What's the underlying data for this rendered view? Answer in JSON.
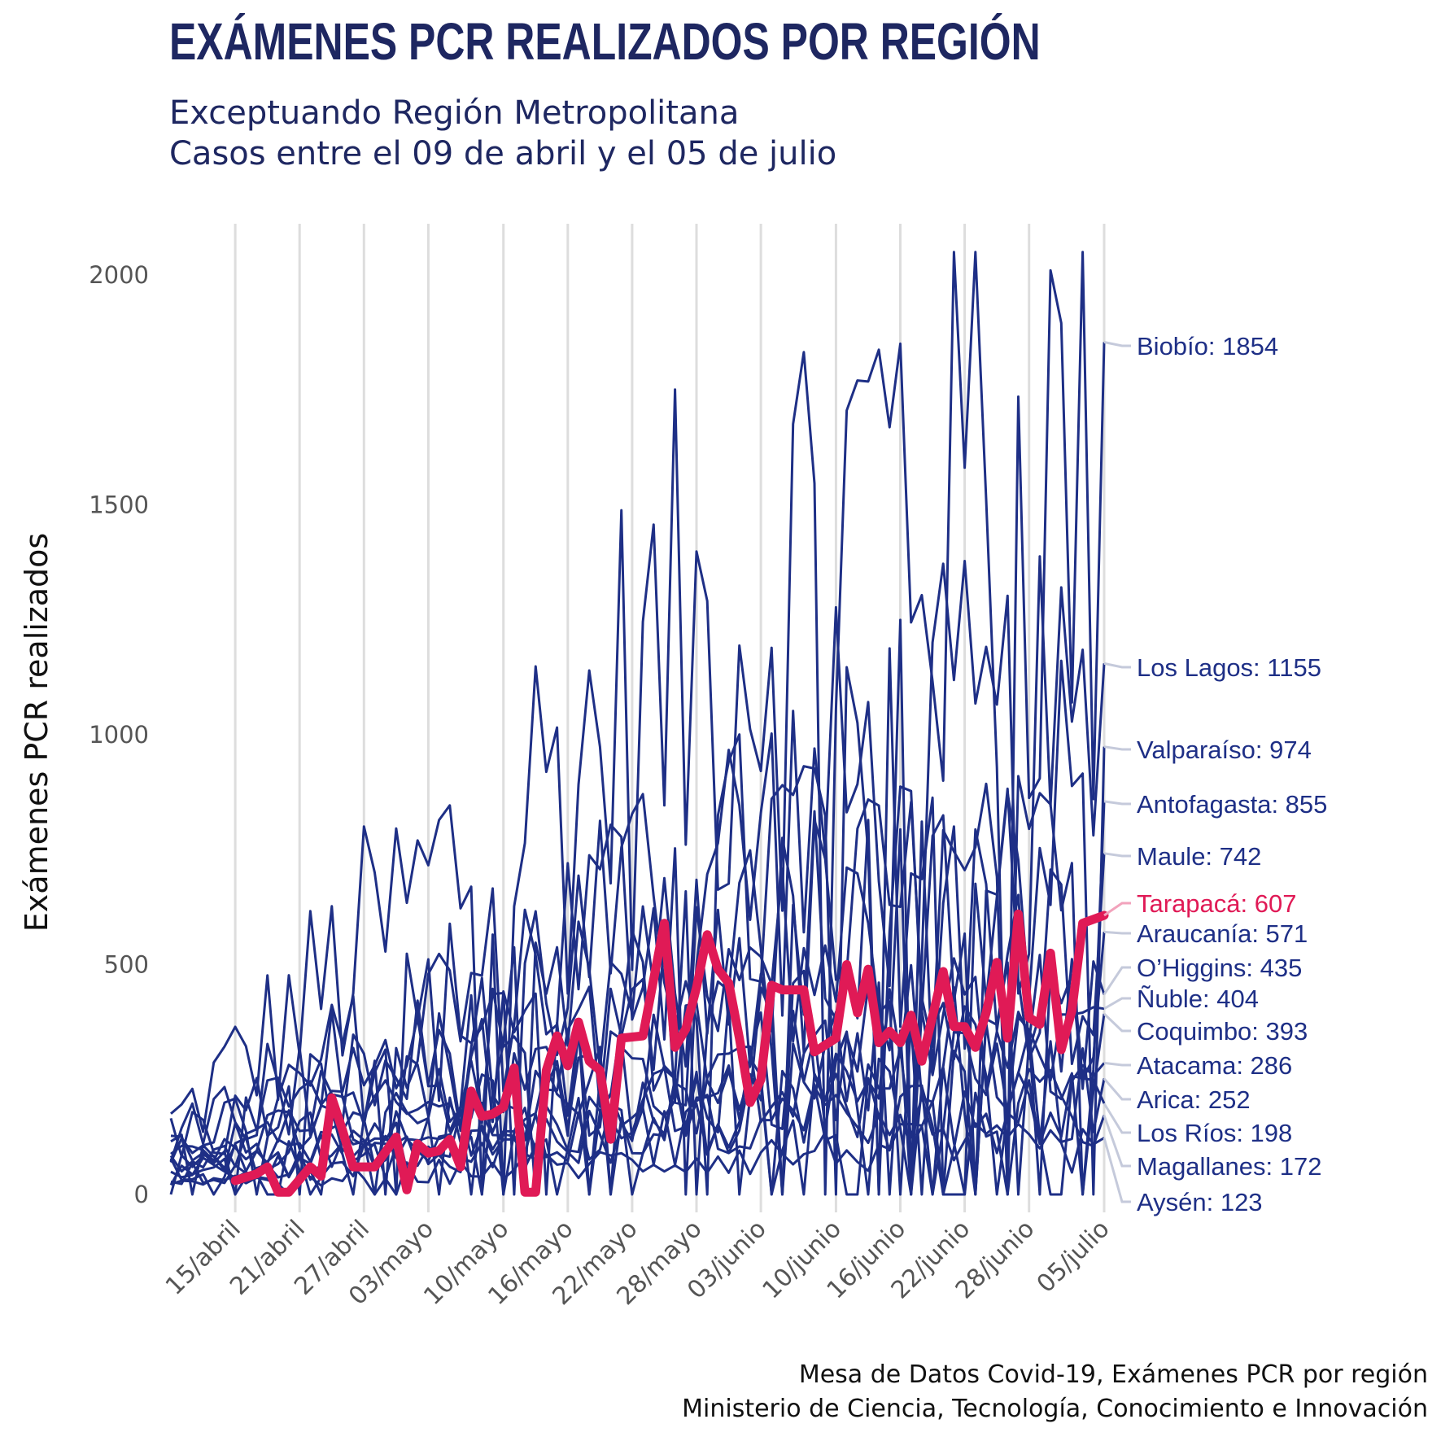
{
  "title": "EXÁMENES PCR REALIZADOS POR REGIÓN",
  "subtitle_line1": "Exceptuando Región Metropolitana",
  "subtitle_line2": "Casos entre el 09 de abril y el 05 de julio",
  "caption_line1": "Mesa de Datos Covid-19, Exámenes PCR por región",
  "caption_line2": "Ministerio de Ciencia, Tecnología, Conocimiento e Innovación",
  "colors": {
    "series": "#1e2f86",
    "highlight": "#e01a56",
    "grid": "#dddddd",
    "label_line": "#c5cadb"
  },
  "chart_data": {
    "type": "line",
    "ylabel": "Exámenes PCR realizados",
    "xlabel": "",
    "ylim": [
      0,
      2100
    ],
    "yticks": [
      0,
      500,
      1000,
      1500,
      2000
    ],
    "xticks": [
      {
        "date": "2020-04-15",
        "label": "15/abril"
      },
      {
        "date": "2020-04-21",
        "label": "21/abril"
      },
      {
        "date": "2020-04-27",
        "label": "27/abril"
      },
      {
        "date": "2020-05-03",
        "label": "03/mayo"
      },
      {
        "date": "2020-05-10",
        "label": "10/mayo"
      },
      {
        "date": "2020-05-16",
        "label": "16/mayo"
      },
      {
        "date": "2020-05-22",
        "label": "22/mayo"
      },
      {
        "date": "2020-05-28",
        "label": "28/mayo"
      },
      {
        "date": "2020-06-03",
        "label": "03/junio"
      },
      {
        "date": "2020-06-10",
        "label": "10/junio"
      },
      {
        "date": "2020-06-16",
        "label": "16/junio"
      },
      {
        "date": "2020-06-22",
        "label": "22/junio"
      },
      {
        "date": "2020-06-28",
        "label": "28/junio"
      },
      {
        "date": "2020-07-05",
        "label": "05/julio"
      }
    ],
    "date_range": [
      "2020-04-09",
      "2020-07-05"
    ],
    "highlight_series": "Tarapacá",
    "series": [
      {
        "name": "Biobío",
        "final": 1854,
        "label": "Biobío: 1854"
      },
      {
        "name": "Los Lagos",
        "final": 1155,
        "label": "Los Lagos: 1155"
      },
      {
        "name": "Valparaíso",
        "final": 974,
        "label": "Valparaíso: 974"
      },
      {
        "name": "Antofagasta",
        "final": 855,
        "label": "Antofagasta: 855"
      },
      {
        "name": "Maule",
        "final": 742,
        "label": "Maule: 742"
      },
      {
        "name": "Tarapacá",
        "final": 607,
        "label": "Tarapacá: 607"
      },
      {
        "name": "Araucanía",
        "final": 571,
        "label": "Araucanía: 571"
      },
      {
        "name": "O’Higgins",
        "final": 435,
        "label": "O’Higgins: 435"
      },
      {
        "name": "Ñuble",
        "final": 404,
        "label": "Ñuble: 404"
      },
      {
        "name": "Coquimbo",
        "final": 393,
        "label": "Coquimbo: 393"
      },
      {
        "name": "Atacama",
        "final": 286,
        "label": "Atacama: 286"
      },
      {
        "name": "Arica",
        "final": 252,
        "label": "Arica: 252"
      },
      {
        "name": "Los Ríos",
        "final": 198,
        "label": "Los Ríos: 198"
      },
      {
        "name": "Magallanes",
        "final": 172,
        "label": "Magallanes: 172"
      },
      {
        "name": "Aysén",
        "final": 123,
        "label": "Aysén: 123"
      }
    ],
    "highlight_values": [
      {
        "date": "2020-04-15",
        "y": 30
      },
      {
        "date": "2020-04-17",
        "y": 45
      },
      {
        "date": "2020-04-18",
        "y": 60
      },
      {
        "date": "2020-04-19",
        "y": 5
      },
      {
        "date": "2020-04-20",
        "y": 5
      },
      {
        "date": "2020-04-22",
        "y": 60
      },
      {
        "date": "2020-04-23",
        "y": 40
      },
      {
        "date": "2020-04-24",
        "y": 210
      },
      {
        "date": "2020-04-25",
        "y": 140
      },
      {
        "date": "2020-04-26",
        "y": 60
      },
      {
        "date": "2020-04-28",
        "y": 60
      },
      {
        "date": "2020-04-30",
        "y": 125
      },
      {
        "date": "2020-05-01",
        "y": 10
      },
      {
        "date": "2020-05-02",
        "y": 110
      },
      {
        "date": "2020-05-03",
        "y": 90
      },
      {
        "date": "2020-05-04",
        "y": 95
      },
      {
        "date": "2020-05-05",
        "y": 120
      },
      {
        "date": "2020-05-06",
        "y": 60
      },
      {
        "date": "2020-05-07",
        "y": 225
      },
      {
        "date": "2020-05-08",
        "y": 170
      },
      {
        "date": "2020-05-09",
        "y": 175
      },
      {
        "date": "2020-05-10",
        "y": 190
      },
      {
        "date": "2020-05-11",
        "y": 275
      },
      {
        "date": "2020-05-12",
        "y": 5
      },
      {
        "date": "2020-05-13",
        "y": 5
      },
      {
        "date": "2020-05-14",
        "y": 270
      },
      {
        "date": "2020-05-15",
        "y": 345
      },
      {
        "date": "2020-05-16",
        "y": 280
      },
      {
        "date": "2020-05-17",
        "y": 375
      },
      {
        "date": "2020-05-18",
        "y": 290
      },
      {
        "date": "2020-05-19",
        "y": 270
      },
      {
        "date": "2020-05-20",
        "y": 120
      },
      {
        "date": "2020-05-21",
        "y": 340
      },
      {
        "date": "2020-05-23",
        "y": 345
      },
      {
        "date": "2020-05-25",
        "y": 590
      },
      {
        "date": "2020-05-26",
        "y": 320
      },
      {
        "date": "2020-05-27",
        "y": 360
      },
      {
        "date": "2020-05-28",
        "y": 450
      },
      {
        "date": "2020-05-29",
        "y": 565
      },
      {
        "date": "2020-05-30",
        "y": 490
      },
      {
        "date": "2020-05-31",
        "y": 460
      },
      {
        "date": "2020-06-01",
        "y": 340
      },
      {
        "date": "2020-06-02",
        "y": 200
      },
      {
        "date": "2020-06-03",
        "y": 250
      },
      {
        "date": "2020-06-04",
        "y": 455
      },
      {
        "date": "2020-06-05",
        "y": 445
      },
      {
        "date": "2020-06-07",
        "y": 445
      },
      {
        "date": "2020-06-08",
        "y": 310
      },
      {
        "date": "2020-06-10",
        "y": 340
      },
      {
        "date": "2020-06-11",
        "y": 500
      },
      {
        "date": "2020-06-12",
        "y": 395
      },
      {
        "date": "2020-06-13",
        "y": 490
      },
      {
        "date": "2020-06-14",
        "y": 330
      },
      {
        "date": "2020-06-15",
        "y": 355
      },
      {
        "date": "2020-06-16",
        "y": 330
      },
      {
        "date": "2020-06-17",
        "y": 390
      },
      {
        "date": "2020-06-18",
        "y": 290
      },
      {
        "date": "2020-06-20",
        "y": 485
      },
      {
        "date": "2020-06-21",
        "y": 365
      },
      {
        "date": "2020-06-22",
        "y": 365
      },
      {
        "date": "2020-06-23",
        "y": 320
      },
      {
        "date": "2020-06-24",
        "y": 395
      },
      {
        "date": "2020-06-25",
        "y": 505
      },
      {
        "date": "2020-06-26",
        "y": 340
      },
      {
        "date": "2020-06-27",
        "y": 610
      },
      {
        "date": "2020-06-28",
        "y": 385
      },
      {
        "date": "2020-06-29",
        "y": 370
      },
      {
        "date": "2020-06-30",
        "y": 525
      },
      {
        "date": "2020-07-01",
        "y": 315
      },
      {
        "date": "2020-07-02",
        "y": 400
      },
      {
        "date": "2020-07-03",
        "y": 590
      },
      {
        "date": "2020-07-05",
        "y": 607
      }
    ]
  }
}
